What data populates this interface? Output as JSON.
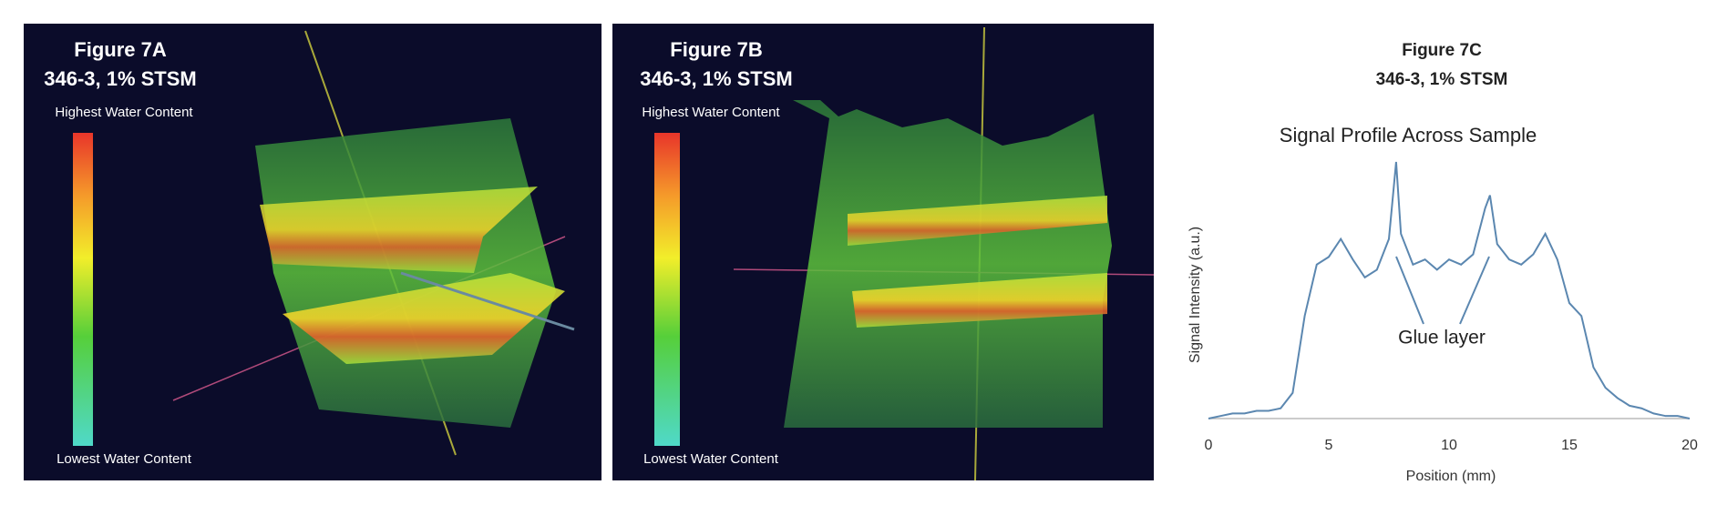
{
  "panels": [
    {
      "title": "Figure 7A",
      "subtitle": "346-3, 1% STSM",
      "high_label": "Highest Water Content",
      "low_label": "Lowest Water Content"
    },
    {
      "title": "Figure 7B",
      "subtitle": "346-3, 1% STSM",
      "high_label": "Highest Water Content",
      "low_label": "Lowest Water Content"
    }
  ],
  "chart_data": {
    "type": "line",
    "title": "Figure 7C",
    "subtitle": "346-3, 1% STSM",
    "chart_title": "Signal Profile Across Sample",
    "x_label": "Position (mm)",
    "y_label": "Signal Intensity (a.u.)",
    "annotation": "Glue layer",
    "x": [
      0,
      0.5,
      1,
      1.5,
      2,
      2.5,
      3,
      3.5,
      4,
      4.5,
      5,
      5.5,
      6,
      6.5,
      7,
      7.5,
      7.8,
      8,
      8.5,
      9,
      9.5,
      10,
      10.5,
      11,
      11.5,
      11.7,
      12,
      12.5,
      13,
      13.5,
      14,
      14.5,
      15,
      15.5,
      16,
      16.5,
      17,
      17.5,
      18,
      18.5,
      19,
      19.5,
      20
    ],
    "values": [
      0,
      1,
      2,
      2,
      3,
      3,
      4,
      10,
      40,
      60,
      63,
      70,
      62,
      55,
      58,
      70,
      100,
      72,
      60,
      62,
      58,
      62,
      60,
      64,
      82,
      87,
      68,
      62,
      60,
      64,
      72,
      62,
      45,
      40,
      20,
      12,
      8,
      5,
      4,
      2,
      1,
      1,
      0
    ],
    "color": "#5b87b0",
    "xlim": [
      0,
      20
    ],
    "xticks": [
      0,
      5,
      10,
      15,
      20
    ],
    "ylim": [
      0,
      100
    ],
    "grid": false
  }
}
